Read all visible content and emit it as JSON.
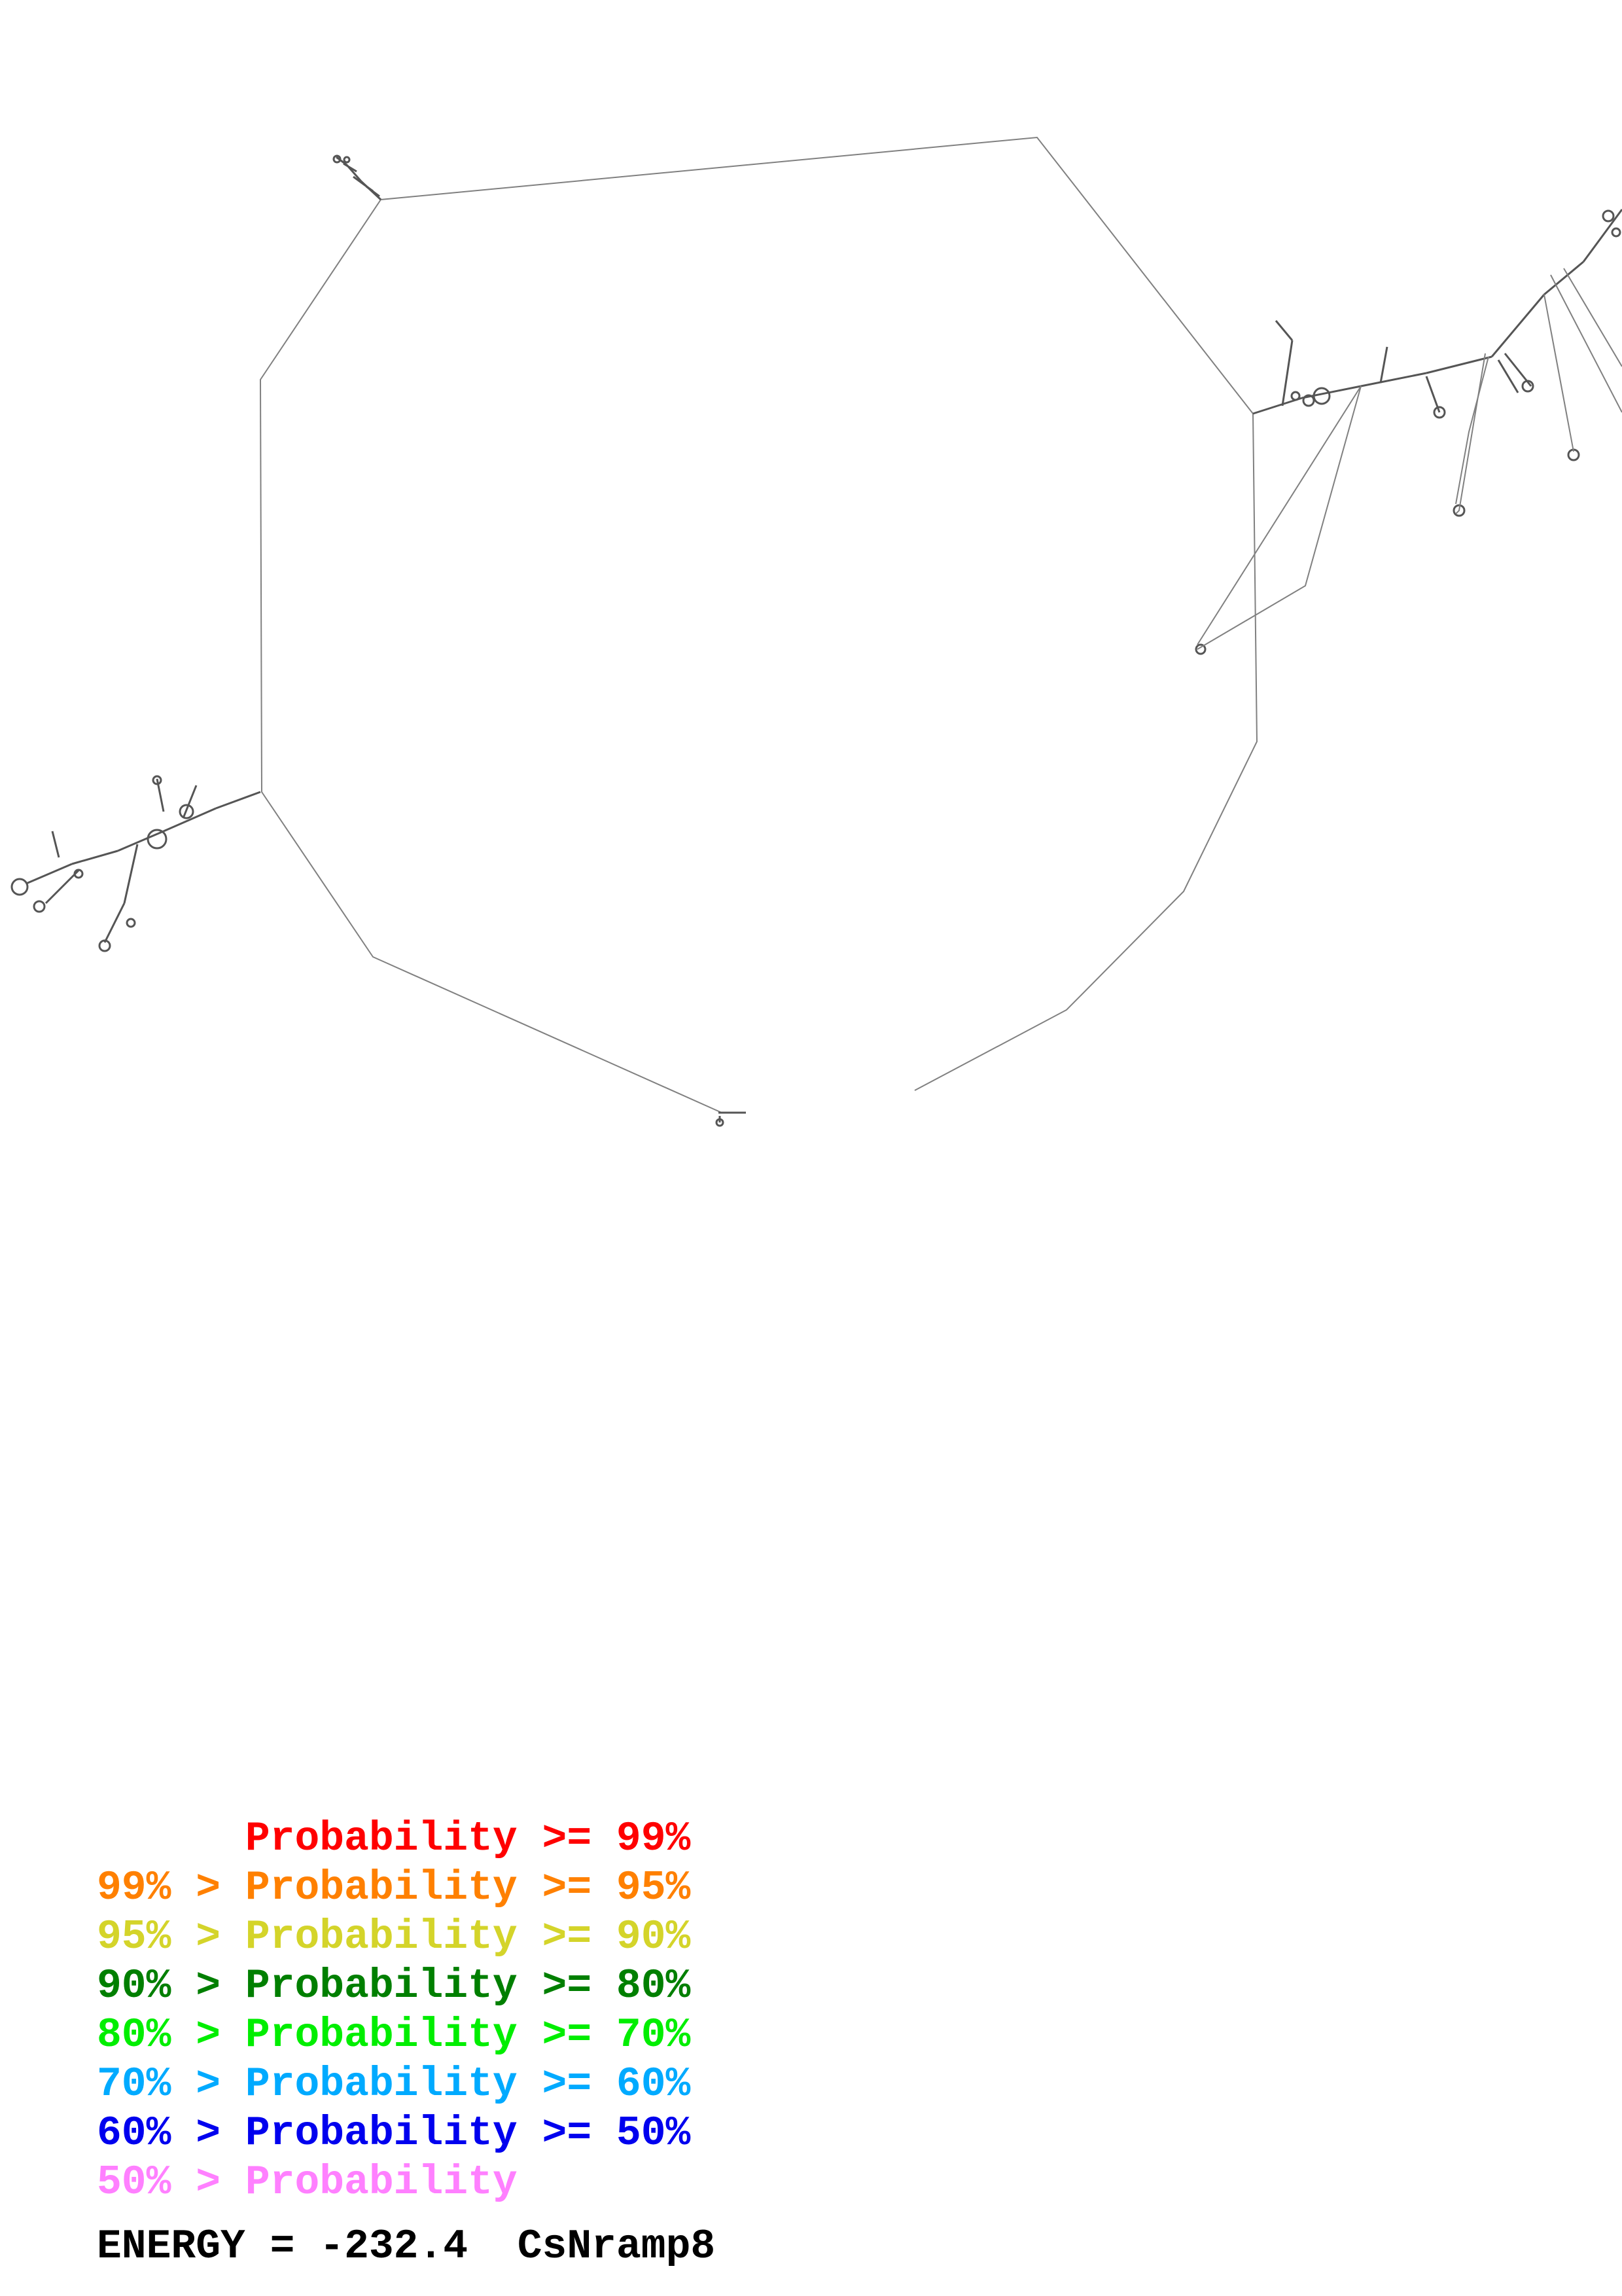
{
  "legend": {
    "rows": [
      {
        "text": "      Probability >= 99%",
        "color": "#ff0000"
      },
      {
        "text": "99% > Probability >= 95%",
        "color": "#ff8000"
      },
      {
        "text": "95% > Probability >= 90%",
        "color": "#d4d42a"
      },
      {
        "text": "90% > Probability >= 80%",
        "color": "#007f00"
      },
      {
        "text": "80% > Probability >= 70%",
        "color": "#00ee00"
      },
      {
        "text": "70% > Probability >= 60%",
        "color": "#00aaff"
      },
      {
        "text": "60% > Probability >= 50%",
        "color": "#0000ee"
      },
      {
        "text": "50% > Probability",
        "color": "#ff80ff"
      }
    ]
  },
  "energy": {
    "label": "ENERGY = ",
    "value": "-232.4",
    "name": "CsNramp8"
  },
  "colors": {
    "backbone": "#808080",
    "structure": "#555555"
  }
}
